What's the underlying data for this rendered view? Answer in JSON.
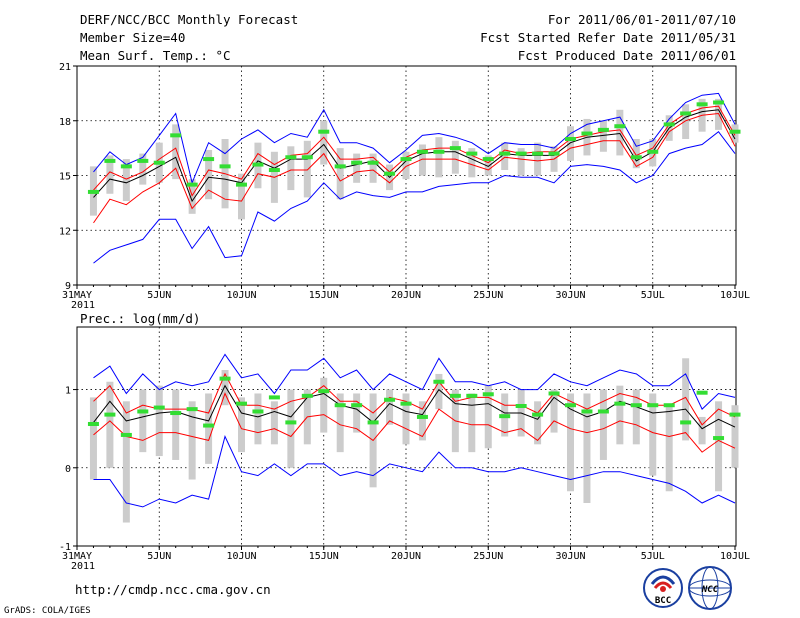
{
  "header": {
    "left": [
      "DERF/NCC/BCC Monthly Forecast",
      "Member Size=40",
      "Mean Surf. Temp.: °C"
    ],
    "right": [
      "For 2011/06/01-2011/07/10",
      "Fcst Started Refer Date 2011/05/31",
      "Fcst Produced Date 2011/06/01"
    ]
  },
  "footer": {
    "url": "http://cmdp.ncc.cma.gov.cn",
    "credit": "GrADS: COLA/IGES",
    "logo_bcc": "BCC",
    "logo_ncc": "NCC"
  },
  "chart_data": [
    {
      "type": "line",
      "title": "Mean Surf. Temp.: °C",
      "x_labels": [
        "31MAY",
        "5JUN",
        "10JUN",
        "15JUN",
        "20JUN",
        "25JUN",
        "30JUN",
        "5JUL",
        "10JUL"
      ],
      "x_label_days": [
        0,
        5,
        10,
        15,
        20,
        25,
        30,
        35,
        40
      ],
      "year_label": "2011",
      "ylim": [
        9,
        21
      ],
      "yticks": [
        9,
        12,
        15,
        18,
        21
      ],
      "days": [
        1,
        2,
        3,
        4,
        5,
        6,
        7,
        8,
        9,
        10,
        11,
        12,
        13,
        14,
        15,
        16,
        17,
        18,
        19,
        20,
        21,
        22,
        23,
        24,
        25,
        26,
        27,
        28,
        29,
        30,
        31,
        32,
        33,
        34,
        35,
        36,
        37,
        38,
        39,
        40
      ],
      "series": [
        {
          "name": "max",
          "color": "#0000ff",
          "values": [
            15.2,
            16.3,
            15.6,
            16.0,
            17.2,
            18.4,
            14.6,
            16.8,
            16.2,
            17.0,
            17.5,
            16.8,
            17.3,
            17.1,
            18.6,
            16.8,
            16.8,
            16.5,
            15.7,
            16.4,
            17.2,
            17.3,
            17.1,
            16.8,
            16.2,
            16.8,
            16.7,
            16.7,
            16.5,
            17.3,
            17.8,
            18.0,
            18.2,
            16.6,
            16.9,
            18.1,
            19.0,
            19.4,
            19.5,
            17.8
          ]
        },
        {
          "name": "upper",
          "color": "#ff0000",
          "values": [
            14.2,
            15.2,
            14.8,
            15.2,
            15.9,
            16.5,
            13.9,
            15.3,
            15.1,
            14.8,
            16.2,
            15.6,
            16.1,
            16.2,
            17.1,
            15.9,
            15.9,
            16.0,
            15.2,
            16.0,
            16.4,
            16.5,
            16.5,
            16.1,
            15.7,
            16.4,
            16.2,
            16.3,
            16.3,
            17.0,
            17.2,
            17.4,
            17.5,
            16.1,
            16.5,
            17.8,
            18.4,
            18.7,
            18.8,
            17.2
          ]
        },
        {
          "name": "mean",
          "color": "#000000",
          "values": [
            13.8,
            14.8,
            14.6,
            15.0,
            15.5,
            16.0,
            13.6,
            14.9,
            14.8,
            14.6,
            15.8,
            15.4,
            15.9,
            15.9,
            16.7,
            15.4,
            15.6,
            15.8,
            14.9,
            15.8,
            16.2,
            16.3,
            16.3,
            15.9,
            15.5,
            16.2,
            16.1,
            16.1,
            16.1,
            16.8,
            17.1,
            17.2,
            17.3,
            15.8,
            16.3,
            17.6,
            18.2,
            18.5,
            18.6,
            17.0
          ]
        },
        {
          "name": "lower",
          "color": "#ff0000",
          "values": [
            12.4,
            13.7,
            13.4,
            14.1,
            14.6,
            15.4,
            13.2,
            14.2,
            13.7,
            13.6,
            15.1,
            14.9,
            15.3,
            15.3,
            16.2,
            14.7,
            15.2,
            15.3,
            14.6,
            15.5,
            15.9,
            15.9,
            15.9,
            15.6,
            15.3,
            16.0,
            15.9,
            15.8,
            15.9,
            16.5,
            16.7,
            16.9,
            16.9,
            15.5,
            16.0,
            17.4,
            18.0,
            18.3,
            18.4,
            16.6
          ]
        },
        {
          "name": "min",
          "color": "#0000ff",
          "values": [
            10.2,
            10.9,
            11.2,
            11.5,
            12.6,
            12.6,
            11.0,
            12.2,
            10.5,
            10.6,
            13.0,
            12.5,
            13.2,
            13.6,
            14.6,
            13.7,
            14.1,
            13.9,
            13.8,
            14.1,
            14.1,
            14.4,
            14.5,
            14.6,
            14.6,
            15.0,
            14.9,
            14.9,
            14.6,
            15.5,
            15.6,
            15.5,
            15.3,
            14.6,
            15.0,
            16.2,
            16.5,
            16.7,
            17.4,
            16.2
          ]
        }
      ],
      "bars": [
        [
          12.8,
          15.5
        ],
        [
          14.0,
          16.1
        ],
        [
          13.6,
          15.9
        ],
        [
          14.5,
          16.2
        ],
        [
          14.6,
          16.8
        ],
        [
          14.8,
          17.8
        ],
        [
          12.9,
          14.8
        ],
        [
          13.7,
          16.4
        ],
        [
          13.2,
          17.0
        ],
        [
          12.6,
          15.1
        ],
        [
          14.3,
          16.8
        ],
        [
          13.5,
          16.3
        ],
        [
          14.2,
          16.6
        ],
        [
          13.8,
          16.9
        ],
        [
          15.6,
          18.0
        ],
        [
          13.7,
          16.5
        ],
        [
          14.6,
          16.2
        ],
        [
          14.6,
          16.2
        ],
        [
          14.2,
          15.6
        ],
        [
          14.8,
          16.3
        ],
        [
          15.0,
          16.7
        ],
        [
          14.9,
          17.1
        ],
        [
          15.1,
          16.9
        ],
        [
          14.9,
          16.5
        ],
        [
          15.0,
          16.1
        ],
        [
          15.3,
          16.8
        ],
        [
          15.0,
          16.5
        ],
        [
          15.0,
          16.8
        ],
        [
          15.2,
          16.6
        ],
        [
          15.8,
          17.7
        ],
        [
          16.1,
          18.1
        ],
        [
          16.3,
          18.0
        ],
        [
          16.1,
          18.6
        ],
        [
          15.4,
          17.0
        ],
        [
          15.5,
          17.0
        ],
        [
          16.9,
          18.3
        ],
        [
          17.0,
          18.9
        ],
        [
          17.4,
          19.2
        ],
        [
          17.5,
          19.2
        ],
        [
          16.8,
          17.8
        ]
      ],
      "obs": [
        14.1,
        15.8,
        15.5,
        15.8,
        15.7,
        17.2,
        14.5,
        15.9,
        15.5,
        14.5,
        15.6,
        15.3,
        16.0,
        16.0,
        17.4,
        15.5,
        15.7,
        15.7,
        15.1,
        15.9,
        16.3,
        16.3,
        16.5,
        16.2,
        15.9,
        16.2,
        16.2,
        16.2,
        16.2,
        17.0,
        17.3,
        17.5,
        17.7,
        16.0,
        16.3,
        17.8,
        18.4,
        18.9,
        19.0,
        17.4
      ]
    },
    {
      "type": "line",
      "title": "Prec.: log(mm/d)",
      "x_labels": [
        "31MAY",
        "5JUN",
        "10JUN",
        "15JUN",
        "20JUN",
        "25JUN",
        "30JUN",
        "5JUL",
        "10JUL"
      ],
      "x_label_days": [
        0,
        5,
        10,
        15,
        20,
        25,
        30,
        35,
        40
      ],
      "year_label": "2011",
      "ylim": [
        -1,
        1.8
      ],
      "yticks": [
        -1,
        0,
        1
      ],
      "days": [
        1,
        2,
        3,
        4,
        5,
        6,
        7,
        8,
        9,
        10,
        11,
        12,
        13,
        14,
        15,
        16,
        17,
        18,
        19,
        20,
        21,
        22,
        23,
        24,
        25,
        26,
        27,
        28,
        29,
        30,
        31,
        32,
        33,
        34,
        35,
        36,
        37,
        38,
        39,
        40
      ],
      "series": [
        {
          "name": "max",
          "color": "#0000ff",
          "values": [
            1.15,
            1.3,
            0.95,
            1.2,
            1.0,
            1.1,
            1.05,
            1.1,
            1.45,
            1.15,
            1.2,
            0.95,
            1.25,
            1.25,
            1.4,
            1.15,
            1.25,
            1.0,
            1.2,
            1.1,
            1.0,
            1.4,
            1.1,
            1.1,
            1.05,
            1.1,
            1.0,
            1.0,
            1.2,
            1.1,
            1.05,
            1.15,
            1.25,
            1.2,
            1.05,
            1.05,
            1.2,
            0.75,
            0.95,
            0.9
          ]
        },
        {
          "name": "upper",
          "color": "#ff0000",
          "values": [
            0.85,
            1.05,
            0.7,
            0.8,
            0.75,
            0.75,
            0.75,
            0.7,
            1.2,
            0.8,
            0.8,
            0.75,
            0.85,
            0.9,
            1.05,
            0.85,
            0.85,
            0.7,
            0.9,
            0.85,
            0.75,
            1.1,
            0.85,
            0.9,
            0.9,
            0.8,
            0.8,
            0.7,
            0.95,
            0.85,
            0.75,
            0.85,
            0.95,
            0.9,
            0.8,
            0.8,
            0.9,
            0.55,
            0.75,
            0.65
          ]
        },
        {
          "name": "mean",
          "color": "#000000",
          "values": [
            0.58,
            0.85,
            0.6,
            0.65,
            0.7,
            0.72,
            0.65,
            0.6,
            1.05,
            0.7,
            0.65,
            0.72,
            0.65,
            0.9,
            0.95,
            0.8,
            0.75,
            0.58,
            0.82,
            0.72,
            0.68,
            1.0,
            0.82,
            0.8,
            0.82,
            0.7,
            0.7,
            0.62,
            0.9,
            0.75,
            0.65,
            0.72,
            0.85,
            0.78,
            0.7,
            0.72,
            0.75,
            0.5,
            0.62,
            0.52
          ]
        },
        {
          "name": "lower",
          "color": "#ff0000",
          "values": [
            0.42,
            0.6,
            0.4,
            0.35,
            0.45,
            0.45,
            0.4,
            0.35,
            0.95,
            0.5,
            0.45,
            0.5,
            0.4,
            0.65,
            0.68,
            0.55,
            0.5,
            0.35,
            0.6,
            0.5,
            0.4,
            0.75,
            0.6,
            0.55,
            0.55,
            0.45,
            0.5,
            0.35,
            0.6,
            0.5,
            0.45,
            0.5,
            0.6,
            0.55,
            0.45,
            0.4,
            0.45,
            0.2,
            0.35,
            0.25
          ]
        },
        {
          "name": "min",
          "color": "#0000ff",
          "values": [
            -0.15,
            -0.15,
            -0.45,
            -0.5,
            -0.4,
            -0.45,
            -0.35,
            -0.4,
            0.4,
            -0.05,
            -0.1,
            0.05,
            -0.1,
            0.05,
            0.05,
            -0.1,
            -0.05,
            -0.1,
            0.05,
            0.0,
            -0.05,
            0.2,
            0.0,
            0.0,
            -0.05,
            -0.05,
            0.0,
            -0.05,
            -0.1,
            -0.15,
            -0.1,
            -0.05,
            -0.05,
            -0.1,
            -0.15,
            -0.2,
            -0.3,
            -0.45,
            -0.35,
            -0.45
          ]
        },
        {
          "name": "obs",
          "color": "#33dd33",
          "values": []
        }
      ],
      "bars": [
        [
          -0.15,
          0.9
        ],
        [
          0.0,
          1.1
        ],
        [
          -0.7,
          0.85
        ],
        [
          0.2,
          1.0
        ],
        [
          0.15,
          1.05
        ],
        [
          0.1,
          1.0
        ],
        [
          -0.15,
          0.85
        ],
        [
          0.05,
          0.95
        ],
        [
          0.8,
          1.25
        ],
        [
          0.2,
          0.9
        ],
        [
          0.3,
          0.95
        ],
        [
          0.3,
          0.85
        ],
        [
          0.0,
          1.0
        ],
        [
          0.3,
          1.0
        ],
        [
          0.45,
          1.15
        ],
        [
          0.2,
          0.95
        ],
        [
          0.45,
          0.95
        ],
        [
          -0.25,
          0.95
        ],
        [
          0.55,
          1.0
        ],
        [
          0.3,
          0.95
        ],
        [
          0.35,
          0.85
        ],
        [
          0.75,
          1.2
        ],
        [
          0.2,
          1.0
        ],
        [
          0.2,
          0.95
        ],
        [
          0.25,
          1.05
        ],
        [
          0.4,
          0.95
        ],
        [
          0.4,
          1.0
        ],
        [
          0.3,
          0.85
        ],
        [
          0.45,
          1.0
        ],
        [
          -0.3,
          0.95
        ],
        [
          -0.45,
          0.95
        ],
        [
          0.1,
          1.0
        ],
        [
          0.3,
          1.05
        ],
        [
          0.3,
          1.0
        ],
        [
          -0.1,
          0.95
        ],
        [
          -0.3,
          0.8
        ],
        [
          0.35,
          1.4
        ],
        [
          0.3,
          0.65
        ],
        [
          -0.3,
          0.85
        ],
        [
          0.0,
          0.8
        ]
      ],
      "obs": [
        0.56,
        0.68,
        0.42,
        0.72,
        0.77,
        0.7,
        0.75,
        0.54,
        1.14,
        0.82,
        0.72,
        0.9,
        0.58,
        0.92,
        0.98,
        0.8,
        0.8,
        0.58,
        0.87,
        0.82,
        0.65,
        1.1,
        0.92,
        0.92,
        0.94,
        0.66,
        0.79,
        0.68,
        0.95,
        0.8,
        0.72,
        0.72,
        0.82,
        0.8,
        0.8,
        0.8,
        0.58,
        0.96,
        0.38,
        0.68
      ]
    }
  ]
}
